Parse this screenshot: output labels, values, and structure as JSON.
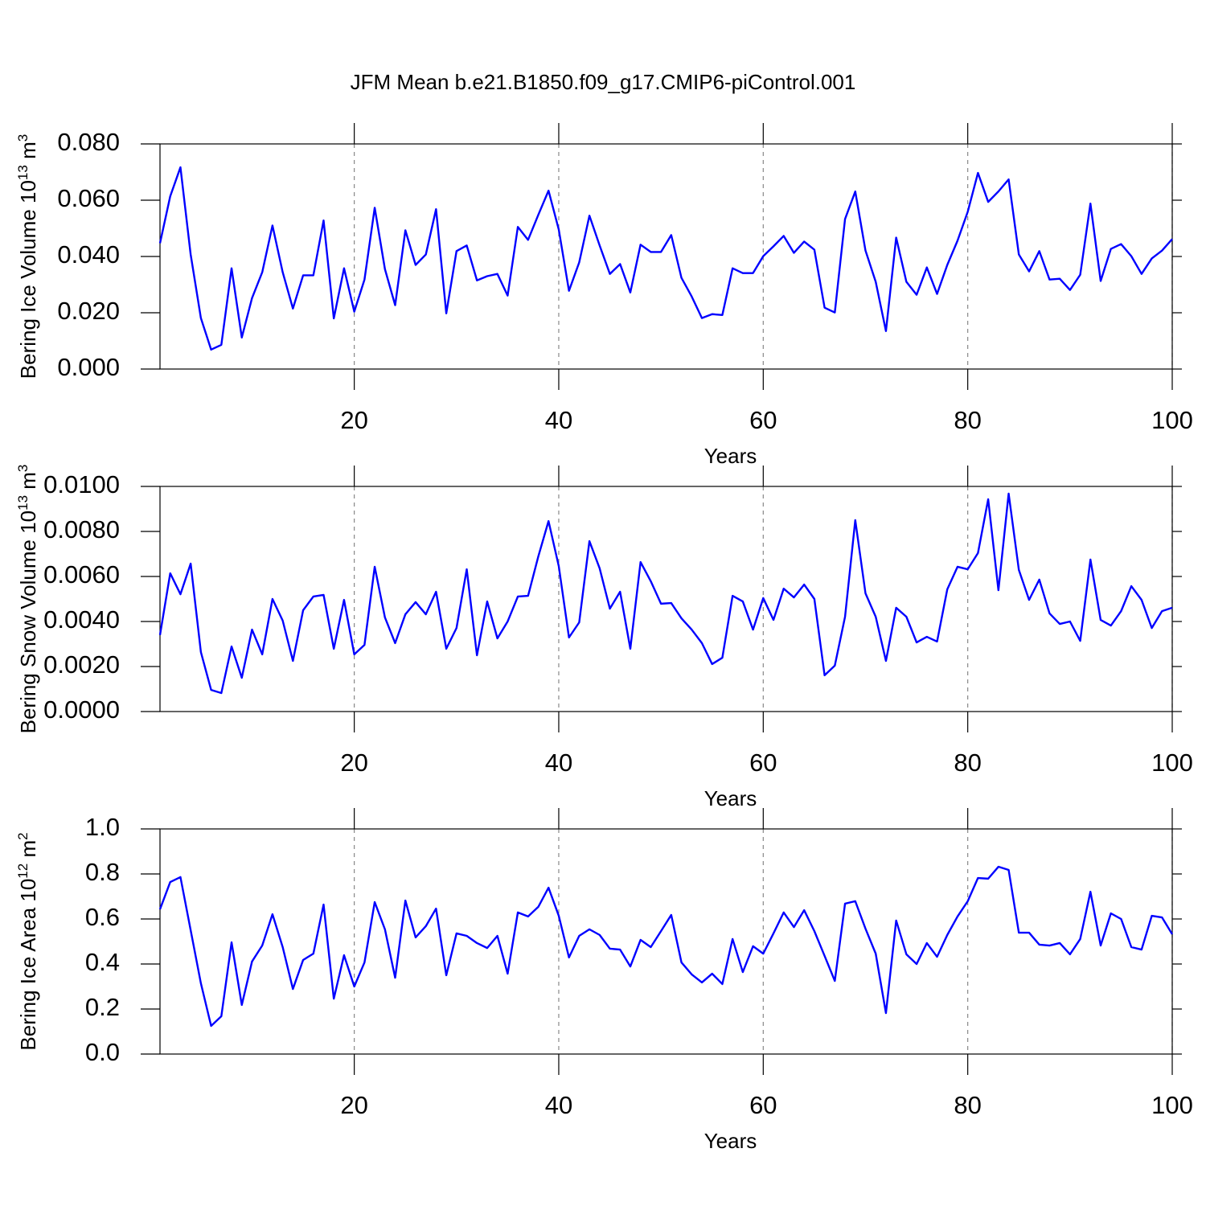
{
  "chart_data": [
    {
      "type": "line",
      "title": "JFM Mean b.e21.B1850.f09_g17.CMIP6-piControl.001",
      "xlabel": "Years",
      "ylabel": {
        "text": "Bering Ice Volume 10",
        "exponent": "13",
        "unit": " m",
        "unit_exponent": "3"
      },
      "color": "#0000ff",
      "grid": "x",
      "xlim": [
        1,
        100
      ],
      "ylim": [
        0,
        0.08
      ],
      "xticks": [
        20,
        40,
        60,
        80,
        100
      ],
      "yticks": [
        {
          "value": 0,
          "label": "0.000"
        },
        {
          "value": 0.02,
          "label": "0.020"
        },
        {
          "value": 0.04,
          "label": "0.040"
        },
        {
          "value": 0.06,
          "label": "0.060"
        },
        {
          "value": 0.08,
          "label": "0.080"
        }
      ],
      "x": [
        1,
        2,
        3,
        4,
        5,
        6,
        7,
        8,
        9,
        10,
        11,
        12,
        13,
        14,
        15,
        16,
        17,
        18,
        19,
        20,
        21,
        22,
        23,
        24,
        25,
        26,
        27,
        28,
        29,
        30,
        31,
        32,
        33,
        34,
        35,
        36,
        37,
        38,
        39,
        40,
        41,
        42,
        43,
        44,
        45,
        46,
        47,
        48,
        49,
        50,
        51,
        52,
        53,
        54,
        55,
        56,
        57,
        58,
        59,
        60,
        61,
        62,
        63,
        64,
        65,
        66,
        67,
        68,
        69,
        70,
        71,
        72,
        73,
        74,
        75,
        76,
        77,
        78,
        79,
        80,
        81,
        82,
        83,
        84,
        85,
        86,
        87,
        88,
        89,
        90,
        91,
        92,
        93,
        94,
        95,
        96,
        97,
        98,
        99,
        100
      ],
      "values": [
        0.0447,
        0.0614,
        0.0717,
        0.0407,
        0.0181,
        0.0069,
        0.0086,
        0.0358,
        0.0112,
        0.0252,
        0.0344,
        0.051,
        0.0344,
        0.0215,
        0.0333,
        0.0333,
        0.0528,
        0.018,
        0.0358,
        0.0204,
        0.0318,
        0.0573,
        0.0355,
        0.0227,
        0.0493,
        0.037,
        0.0407,
        0.0568,
        0.0198,
        0.0419,
        0.0439,
        0.0315,
        0.033,
        0.0338,
        0.0261,
        0.0505,
        0.0459,
        0.0548,
        0.0634,
        0.0496,
        0.0278,
        0.0379,
        0.0545,
        0.0439,
        0.0338,
        0.0373,
        0.0272,
        0.0442,
        0.0416,
        0.0416,
        0.0476,
        0.0324,
        0.0258,
        0.0181,
        0.0195,
        0.0192,
        0.0358,
        0.0341,
        0.0341,
        0.0401,
        0.0436,
        0.0473,
        0.0413,
        0.0453,
        0.0424,
        0.0218,
        0.0201,
        0.0533,
        0.0631,
        0.0421,
        0.031,
        0.0135,
        0.0467,
        0.031,
        0.0264,
        0.0361,
        0.0267,
        0.037,
        0.0456,
        0.0559,
        0.0697,
        0.0594,
        0.0631,
        0.0674,
        0.0407,
        0.0347,
        0.0419,
        0.0318,
        0.0321,
        0.0281,
        0.0335,
        0.0588,
        0.0313,
        0.0427,
        0.0444,
        0.0401,
        0.0338,
        0.0393,
        0.0421,
        0.0462
      ]
    },
    {
      "type": "line",
      "xlabel": "Years",
      "ylabel": {
        "text": "Bering Snow Volume 10",
        "exponent": "13",
        "unit": " m",
        "unit_exponent": "3"
      },
      "color": "#0000ff",
      "grid": "x",
      "xlim": [
        1,
        100
      ],
      "ylim": [
        0,
        0.01
      ],
      "xticks": [
        20,
        40,
        60,
        80,
        100
      ],
      "yticks": [
        {
          "value": 0,
          "label": "0.0000"
        },
        {
          "value": 0.002,
          "label": "0.0020"
        },
        {
          "value": 0.004,
          "label": "0.0040"
        },
        {
          "value": 0.006,
          "label": "0.0060"
        },
        {
          "value": 0.008,
          "label": "0.0080"
        },
        {
          "value": 0.01,
          "label": "0.0100"
        }
      ],
      "x": [
        1,
        2,
        3,
        4,
        5,
        6,
        7,
        8,
        9,
        10,
        11,
        12,
        13,
        14,
        15,
        16,
        17,
        18,
        19,
        20,
        21,
        22,
        23,
        24,
        25,
        26,
        27,
        28,
        29,
        30,
        31,
        32,
        33,
        34,
        35,
        36,
        37,
        38,
        39,
        40,
        41,
        42,
        43,
        44,
        45,
        46,
        47,
        48,
        49,
        50,
        51,
        52,
        53,
        54,
        55,
        56,
        57,
        58,
        59,
        60,
        61,
        62,
        63,
        64,
        65,
        66,
        67,
        68,
        69,
        70,
        71,
        72,
        73,
        74,
        75,
        76,
        77,
        78,
        79,
        80,
        81,
        82,
        83,
        84,
        85,
        86,
        87,
        88,
        89,
        90,
        91,
        92,
        93,
        94,
        95,
        96,
        97,
        98,
        99,
        100
      ],
      "values": [
        0.0034,
        0.00614,
        0.00521,
        0.00657,
        0.00264,
        0.00096,
        0.00082,
        0.00289,
        0.0015,
        0.00364,
        0.00254,
        0.005,
        0.00404,
        0.00225,
        0.0045,
        0.00511,
        0.00518,
        0.00279,
        0.00496,
        0.00254,
        0.00296,
        0.00643,
        0.00418,
        0.00304,
        0.00432,
        0.00486,
        0.00432,
        0.00532,
        0.00279,
        0.00371,
        0.00632,
        0.0025,
        0.00489,
        0.00325,
        0.004,
        0.00511,
        0.00514,
        0.00689,
        0.00846,
        0.00646,
        0.00329,
        0.00396,
        0.00757,
        0.00636,
        0.00457,
        0.00532,
        0.00279,
        0.00664,
        0.00579,
        0.00479,
        0.00482,
        0.00414,
        0.00364,
        0.00304,
        0.00211,
        0.00239,
        0.00514,
        0.00489,
        0.00364,
        0.00504,
        0.00407,
        0.00546,
        0.00507,
        0.00564,
        0.005,
        0.00161,
        0.00204,
        0.00421,
        0.0085,
        0.00525,
        0.00421,
        0.00225,
        0.00461,
        0.00421,
        0.00307,
        0.00332,
        0.00311,
        0.00543,
        0.00643,
        0.00632,
        0.00704,
        0.00943,
        0.00539,
        0.00968,
        0.00629,
        0.00496,
        0.00586,
        0.00436,
        0.00389,
        0.004,
        0.00314,
        0.00675,
        0.00407,
        0.00382,
        0.00446,
        0.00557,
        0.00496,
        0.00371,
        0.00446,
        0.00461
      ]
    },
    {
      "type": "line",
      "xlabel": "Years",
      "ylabel": {
        "text": "Bering Ice Area 10",
        "exponent": "12",
        "unit": " m",
        "unit_exponent": "2"
      },
      "color": "#0000ff",
      "grid": "x",
      "xlim": [
        1,
        100
      ],
      "ylim": [
        0,
        1
      ],
      "xticks": [
        20,
        40,
        60,
        80,
        100
      ],
      "yticks": [
        {
          "value": 0,
          "label": "0.0"
        },
        0.2,
        0.4,
        0.6,
        0.8,
        {
          "value": 1,
          "label": "1.0"
        }
      ],
      "x": [
        1,
        2,
        3,
        4,
        5,
        6,
        7,
        8,
        9,
        10,
        11,
        12,
        13,
        14,
        15,
        16,
        17,
        18,
        19,
        20,
        21,
        22,
        23,
        24,
        25,
        26,
        27,
        28,
        29,
        30,
        31,
        32,
        33,
        34,
        35,
        36,
        37,
        38,
        39,
        40,
        41,
        42,
        43,
        44,
        45,
        46,
        47,
        48,
        49,
        50,
        51,
        52,
        53,
        54,
        55,
        56,
        57,
        58,
        59,
        60,
        61,
        62,
        63,
        64,
        65,
        66,
        67,
        68,
        69,
        70,
        71,
        72,
        73,
        74,
        75,
        76,
        77,
        78,
        79,
        80,
        81,
        82,
        83,
        84,
        85,
        86,
        87,
        88,
        89,
        90,
        91,
        92,
        93,
        94,
        95,
        96,
        97,
        98,
        99,
        100
      ],
      "values": [
        0.643,
        0.764,
        0.786,
        0.55,
        0.314,
        0.125,
        0.168,
        0.496,
        0.218,
        0.411,
        0.482,
        0.621,
        0.475,
        0.289,
        0.418,
        0.446,
        0.664,
        0.246,
        0.439,
        0.3,
        0.407,
        0.675,
        0.554,
        0.339,
        0.682,
        0.518,
        0.568,
        0.646,
        0.35,
        0.536,
        0.525,
        0.493,
        0.471,
        0.525,
        0.357,
        0.629,
        0.611,
        0.654,
        0.739,
        0.614,
        0.429,
        0.525,
        0.554,
        0.529,
        0.468,
        0.464,
        0.389,
        0.507,
        0.475,
        0.546,
        0.618,
        0.407,
        0.354,
        0.318,
        0.357,
        0.311,
        0.511,
        0.364,
        0.479,
        0.446,
        0.536,
        0.629,
        0.564,
        0.639,
        0.546,
        0.436,
        0.325,
        0.668,
        0.679,
        0.557,
        0.446,
        0.182,
        0.593,
        0.443,
        0.4,
        0.493,
        0.432,
        0.529,
        0.611,
        0.679,
        0.782,
        0.779,
        0.832,
        0.818,
        0.539,
        0.539,
        0.486,
        0.482,
        0.493,
        0.443,
        0.511,
        0.721,
        0.482,
        0.625,
        0.6,
        0.475,
        0.464,
        0.614,
        0.607,
        0.532
      ]
    }
  ]
}
